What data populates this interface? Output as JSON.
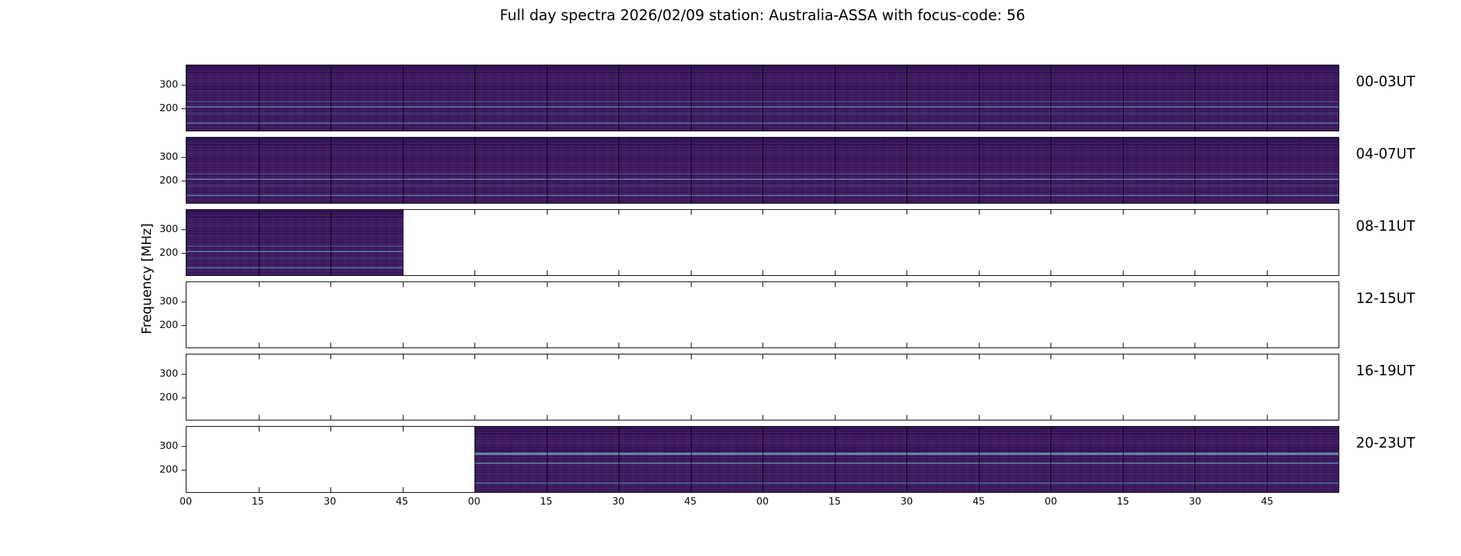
{
  "title": "Full day spectra 2026/02/09 station: Australia-ASSA with focus-code: 56",
  "y_axis": {
    "label": "Frequency [MHz]",
    "tick_labels": [
      "300",
      "200"
    ]
  },
  "x_axis": {
    "tick_labels": [
      "00",
      "15",
      "30",
      "45",
      "00",
      "15",
      "30",
      "45",
      "00",
      "15",
      "30",
      "45",
      "00",
      "15",
      "30",
      "45"
    ]
  },
  "segments_per_row": 16,
  "rows": [
    {
      "label": "00-03UT",
      "fill_start_seg": 0,
      "fill_end_seg": 16
    },
    {
      "label": "04-07UT",
      "fill_start_seg": 0,
      "fill_end_seg": 16
    },
    {
      "label": "08-11UT",
      "fill_start_seg": 0,
      "fill_end_seg": 3
    },
    {
      "label": "12-15UT",
      "fill_start_seg": 0,
      "fill_end_seg": 0
    },
    {
      "label": "16-19UT",
      "fill_start_seg": 0,
      "fill_end_seg": 0
    },
    {
      "label": "20-23UT",
      "fill_start_seg": 4,
      "fill_end_seg": 16
    }
  ],
  "colors": {
    "spectro_base": "#3e165e",
    "spectro_streak": "#46b5c4",
    "panel_border": "#000000",
    "background": "#ffffff"
  },
  "chart_data": {
    "type": "heatmap",
    "subtype": "radio spectrogram (dynamic spectra)",
    "title": "Full day spectra 2026/02/09 station: Australia-ASSA with focus-code: 56",
    "ylabel": "Frequency [MHz]",
    "yticks": [
      200,
      300
    ],
    "y_direction": "frequency increases upward",
    "x_unit": "minutes past hour",
    "x_tick_labels_per_hour": [
      "00",
      "15",
      "30",
      "45"
    ],
    "hours_per_panel": 4,
    "minutes_per_segment": 15,
    "segments_per_panel": 16,
    "legend_position": "right of each panel (UT range labels)",
    "grid": false,
    "panels": [
      {
        "ut_range": "00-03UT",
        "has_data": true,
        "coverage_segments": [
          0,
          16
        ],
        "coverage_description": "full 00:00-04:00 UT"
      },
      {
        "ut_range": "04-07UT",
        "has_data": true,
        "coverage_segments": [
          0,
          16
        ],
        "coverage_description": "full 04:00-08:00 UT"
      },
      {
        "ut_range": "08-11UT",
        "has_data": true,
        "coverage_segments": [
          0,
          3
        ],
        "coverage_description": "partial 08:00-08:45 UT"
      },
      {
        "ut_range": "12-15UT",
        "has_data": false,
        "coverage_segments": [
          0,
          0
        ],
        "coverage_description": "no data"
      },
      {
        "ut_range": "16-19UT",
        "has_data": false,
        "coverage_segments": [
          0,
          0
        ],
        "coverage_description": "no data"
      },
      {
        "ut_range": "20-23UT",
        "has_data": true,
        "coverage_segments": [
          4,
          16
        ],
        "coverage_description": "partial 21:00-24:00 UT, bright cyan bands near 230 MHz"
      }
    ],
    "colormap": "viridis-like: dark purple background with horizontal teal/cyan interference bands, strongest near 180-230 MHz"
  }
}
